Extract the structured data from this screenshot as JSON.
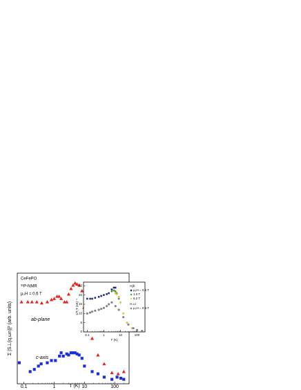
{
  "chart_data": [
    {
      "type": "scatter",
      "xlabel": "T (K)",
      "ylabel": "Σ |S⊥(q,ωn)|² (arb. units)",
      "xscale": "log",
      "xlim": [
        0.06,
        300
      ],
      "xticks": [
        0.1,
        1,
        10,
        100
      ],
      "ylim": [
        0,
        10
      ],
      "annotations": [
        "CeFePO",
        "³¹P-NMR",
        "μ₀H = 0.6 T",
        "ab-plane",
        "c-axis"
      ],
      "series": [
        {
          "name": "ab-plane",
          "color": "#e8221c",
          "marker": "triangle",
          "x": [
            0.083,
            0.134,
            0.184,
            0.266,
            0.386,
            0.59,
            0.81,
            1.0,
            1.24,
            1.45,
            1.7,
            2.2,
            2.6,
            3.0,
            3.6,
            4.2,
            4.9,
            5.7,
            6.7,
            8.3,
            9.7,
            12,
            18,
            28,
            45,
            81,
            130,
            200
          ],
          "values": [
            7.4,
            7.4,
            7.4,
            7.4,
            7.3,
            7.4,
            7.6,
            7.7,
            7.9,
            7.9,
            7.7,
            7.4,
            7.4,
            8.1,
            8.6,
            8.9,
            9.1,
            9.0,
            8.9,
            8.4,
            6.9,
            5.6,
            4.1,
            2.6,
            1.8,
            1.0,
            0.9,
            1.1
          ]
        },
        {
          "name": "c-axis",
          "color": "#1a2ee0",
          "marker": "square",
          "x": [
            0.07,
            0.16,
            0.22,
            0.3,
            0.37,
            0.59,
            0.81,
            1.1,
            1.5,
            1.7,
            2.0,
            2.6,
            3.0,
            3.6,
            4.2,
            4.9,
            5.7,
            6.7,
            8.3,
            10,
            18,
            28,
            45,
            81,
            120,
            160,
            200
          ],
          "values": [
            1.9,
            1.1,
            1.3,
            1.6,
            1.8,
            1.9,
            2.1,
            2.1,
            2.5,
            2.8,
            2.5,
            2.7,
            2.6,
            2.8,
            2.8,
            2.8,
            2.7,
            2.6,
            2.3,
            1.6,
            1.1,
            0.9,
            0.6,
            0.4,
            0.6,
            0.5,
            0.4
          ]
        }
      ]
    },
    {
      "type": "scatter",
      "xlabel": "T (K)",
      "ylabel": "1/T₁T (sK)⁻¹",
      "xscale": "log",
      "xlim": [
        0.06,
        300
      ],
      "xticks": [
        0.1,
        1,
        10,
        100
      ],
      "ylim": [
        0,
        27
      ],
      "yticks": [
        0,
        5,
        10,
        15,
        20,
        25
      ],
      "legend_headers": [
        "H∥c",
        "H⊥c"
      ],
      "series": [
        {
          "name": "μ₀H = 0.6 T",
          "color": "#1a2a7a",
          "marker": "square",
          "x": [
            0.1,
            0.15,
            0.2,
            0.3,
            0.5,
            0.7,
            1,
            1.5,
            2,
            3,
            4,
            5
          ],
          "values": [
            18,
            18,
            18,
            18.5,
            19,
            19.5,
            20,
            20.5,
            21,
            23,
            24,
            24
          ]
        },
        {
          "name": "1.0 T",
          "color": "#3a9a2a",
          "marker": "diamond",
          "x": [
            3,
            4,
            5,
            6,
            8
          ],
          "values": [
            22,
            22.5,
            22,
            21,
            18
          ]
        },
        {
          "name": "6.2 T",
          "color": "#f2d21a",
          "marker": "diamond",
          "x": [
            5,
            6,
            8,
            10,
            15,
            25,
            50,
            100,
            200
          ],
          "values": [
            21,
            20.5,
            19,
            16,
            10,
            5,
            2,
            1,
            0.5
          ]
        },
        {
          "name": "μ₀H = 0.6 T",
          "color": "#8a8a8a",
          "marker": "circle",
          "x": [
            0.1,
            0.15,
            0.2,
            0.3,
            0.5,
            0.7,
            1,
            1.5,
            2,
            3,
            5,
            8,
            15,
            30,
            60,
            100,
            200
          ],
          "values": [
            10,
            10.5,
            11,
            11.5,
            12,
            12.5,
            13,
            14,
            15,
            16,
            14,
            12,
            8,
            4,
            2,
            1,
            0.5
          ]
        }
      ]
    }
  ]
}
